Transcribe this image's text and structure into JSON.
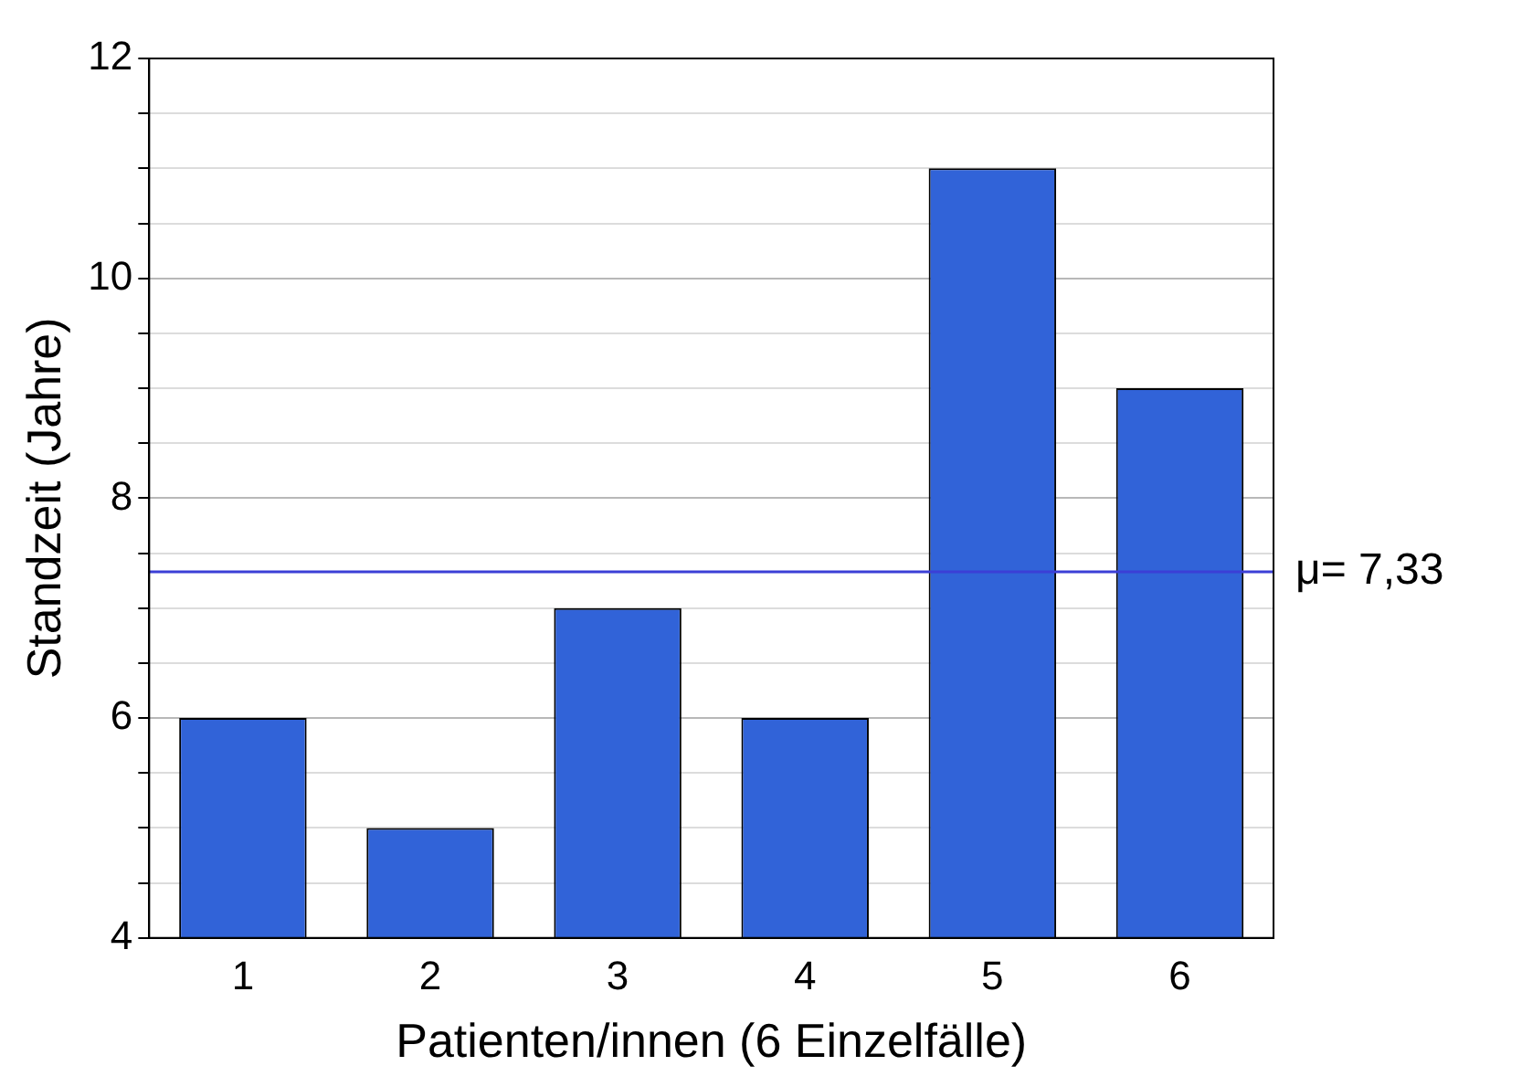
{
  "chart_data": {
    "type": "bar",
    "xlabel": "Patienten/innen (6 Einzelfälle)",
    "ylabel": "Standzeit (Jahre)",
    "categories": [
      "1",
      "2",
      "3",
      "4",
      "5",
      "6"
    ],
    "values": [
      6,
      5,
      7,
      6,
      11,
      9
    ],
    "color": "#3163d8",
    "ylim": [
      4,
      12
    ],
    "yticks": [
      4,
      {
        "value": 4.5,
        "label": null
      },
      {
        "value": 5,
        "label": null
      },
      {
        "value": 5.5,
        "label": null
      },
      6,
      {
        "value": 6.5,
        "label": null
      },
      {
        "value": 7,
        "label": null
      },
      {
        "value": 7.5,
        "label": null
      },
      8,
      {
        "value": 8.5,
        "label": null
      },
      {
        "value": 9,
        "label": null
      },
      {
        "value": 9.5,
        "label": null
      },
      10,
      {
        "value": 10.5,
        "label": null
      },
      {
        "value": 11,
        "label": null
      },
      {
        "value": 11.5,
        "label": null
      },
      12
    ],
    "grid": "y",
    "ref_lines": [
      {
        "axis": "y",
        "value": 7.33,
        "label": "μ= 7,33",
        "color": "#3b3fd6"
      }
    ]
  }
}
